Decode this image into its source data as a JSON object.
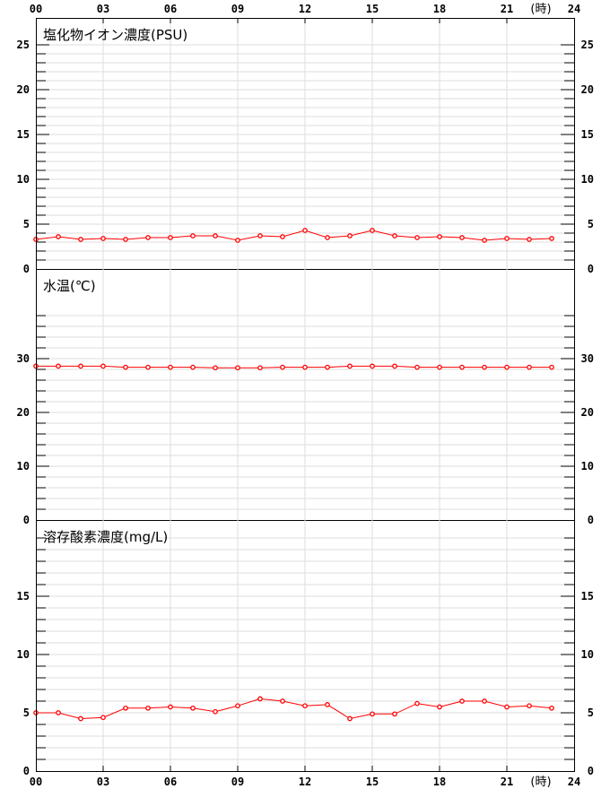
{
  "chart_data": [
    {
      "type": "line",
      "title": "塩化物イオン濃度(PSU)",
      "x": [
        0,
        1,
        2,
        3,
        4,
        5,
        6,
        7,
        8,
        9,
        10,
        11,
        12,
        13,
        14,
        15,
        16,
        17,
        18,
        19,
        20,
        21,
        22,
        23
      ],
      "values": [
        3.3,
        3.6,
        3.3,
        3.4,
        3.3,
        3.5,
        3.5,
        3.7,
        3.7,
        3.2,
        3.7,
        3.6,
        4.3,
        3.5,
        3.7,
        4.3,
        3.7,
        3.5,
        3.6,
        3.5,
        3.2,
        3.4,
        3.3,
        3.4
      ],
      "ylim": [
        0,
        28
      ],
      "yticks": [
        "0",
        "5",
        "10",
        "15",
        "20",
        "25"
      ],
      "minor_step": 1,
      "minor_max": 25,
      "color": "#ff0000"
    },
    {
      "type": "line",
      "title": "水温(℃)",
      "x": [
        0,
        1,
        2,
        3,
        4,
        5,
        6,
        7,
        8,
        9,
        10,
        11,
        12,
        13,
        14,
        15,
        16,
        17,
        18,
        19,
        20,
        21,
        22,
        23
      ],
      "values": [
        28.6,
        28.6,
        28.6,
        28.6,
        28.4,
        28.4,
        28.4,
        28.4,
        28.3,
        28.3,
        28.3,
        28.4,
        28.4,
        28.4,
        28.6,
        28.6,
        28.6,
        28.4,
        28.4,
        28.4,
        28.4,
        28.4,
        28.4,
        28.4
      ],
      "ylim": [
        0,
        46.67
      ],
      "yticks": [
        "0",
        "10",
        "20",
        "30"
      ],
      "minor_step": 2,
      "minor_max": 38,
      "color": "#ff0000"
    },
    {
      "type": "line",
      "title": "溶存酸素濃度(mg/L)",
      "x": [
        0,
        1,
        2,
        3,
        4,
        5,
        6,
        7,
        8,
        9,
        10,
        11,
        12,
        13,
        14,
        15,
        16,
        17,
        18,
        19,
        20,
        21,
        22,
        23
      ],
      "values": [
        5.0,
        5.0,
        4.5,
        4.6,
        5.4,
        5.4,
        5.5,
        5.4,
        5.1,
        5.6,
        6.2,
        6.0,
        5.6,
        5.7,
        4.5,
        4.9,
        4.9,
        5.8,
        5.5,
        6.0,
        6.0,
        5.5,
        5.6,
        5.4
      ],
      "ylim": [
        0,
        21.54
      ],
      "yticks": [
        "0",
        "5",
        "10",
        "15"
      ],
      "minor_step": 1,
      "minor_max": 20,
      "color": "#ff0000"
    }
  ],
  "xaxis": {
    "ticks": [
      "00",
      "03",
      "06",
      "09",
      "12",
      "15",
      "18",
      "21",
      "24"
    ],
    "unit": "(時)",
    "xlim": [
      0,
      24
    ]
  }
}
